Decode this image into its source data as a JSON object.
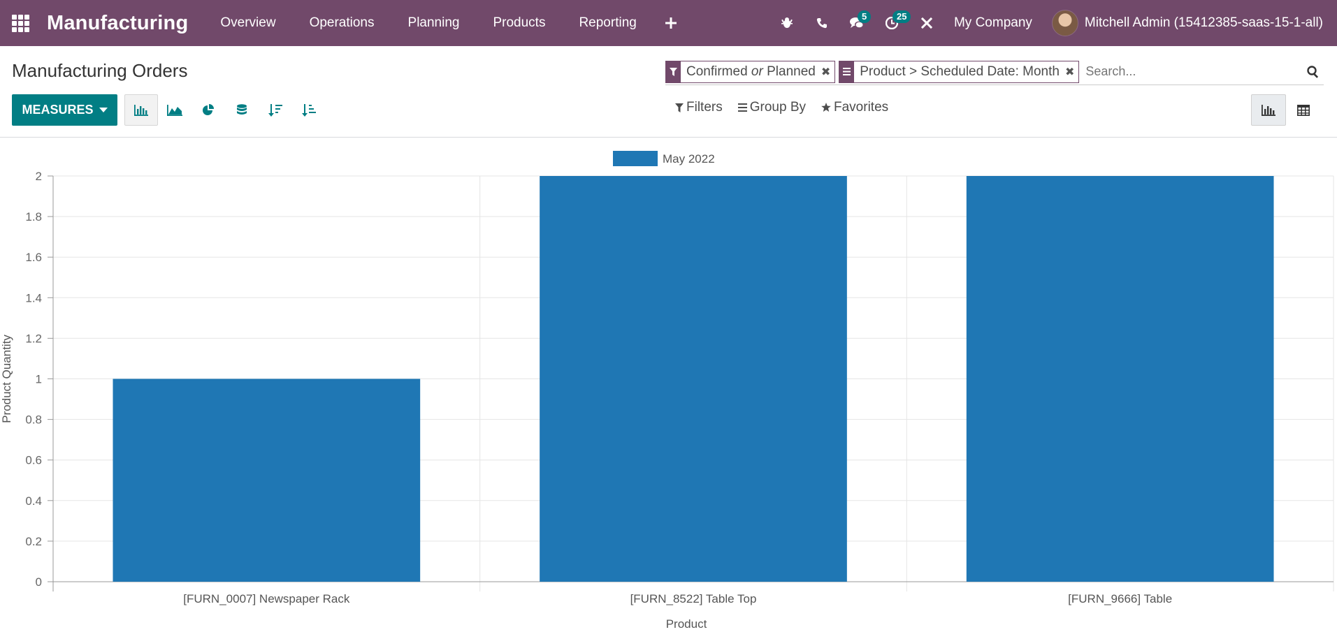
{
  "navbar": {
    "app_name": "Manufacturing",
    "menu": [
      "Overview",
      "Operations",
      "Planning",
      "Products",
      "Reporting"
    ],
    "messages_count": "5",
    "activities_count": "25",
    "company": "My Company",
    "user": "Mitchell Admin (15412385-saas-15-1-all)",
    "bar_color": "#71496a"
  },
  "control_panel": {
    "title": "Manufacturing Orders",
    "measures_label": "MEASURES",
    "facets": [
      {
        "part1": "Confirmed ",
        "part2": "or",
        "part3": " Planned"
      },
      {
        "text": "Product > Scheduled Date: Month"
      }
    ],
    "search_placeholder": "Search...",
    "filters_label": "Filters",
    "group_by_label": "Group By",
    "favorites_label": "Favorites",
    "accent": "#017e84"
  },
  "chart_data": {
    "type": "bar",
    "categories": [
      "[FURN_0007] Newspaper Rack",
      "[FURN_8522] Table Top",
      "[FURN_9666] Table"
    ],
    "series": [
      {
        "name": "May 2022",
        "values": [
          1,
          2,
          2
        ],
        "color": "#1f77b4"
      }
    ],
    "xlabel": "Product",
    "ylabel": "Product Quantity",
    "ylim": [
      0,
      2
    ],
    "yticks": [
      "0",
      "0.2",
      "0.4",
      "0.6",
      "0.8",
      "1",
      "1.2",
      "1.4",
      "1.6",
      "1.8",
      "2"
    ],
    "grid": true,
    "legend": "top-center"
  }
}
